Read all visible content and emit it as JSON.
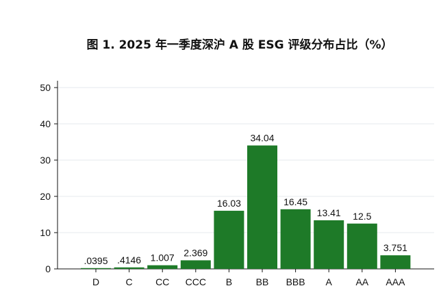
{
  "chart_data": {
    "type": "bar",
    "title": "图 1. 2025 年一季度深沪 A 股 ESG 评级分布占比（%）",
    "xlabel": "",
    "ylabel": "",
    "categories": [
      "D",
      "C",
      "CC",
      "CCC",
      "B",
      "BB",
      "BBB",
      "A",
      "AA",
      "AAA"
    ],
    "values": [
      0.0395,
      0.4146,
      1.007,
      2.369,
      16.03,
      34.04,
      16.45,
      13.41,
      12.5,
      3.751
    ],
    "value_labels": [
      ".0395",
      ".4146",
      "1.007",
      "2.369",
      "16.03",
      "34.04",
      "16.45",
      "13.41",
      "12.5",
      "3.751"
    ],
    "ylim": [
      0,
      50
    ],
    "yticks": [
      0,
      10,
      20,
      30,
      40,
      50
    ],
    "ytick_labels": [
      "0",
      "10",
      "20",
      "30",
      "40",
      "50"
    ],
    "grid": true,
    "legend": "none",
    "bar_color": "#1e7a28"
  }
}
